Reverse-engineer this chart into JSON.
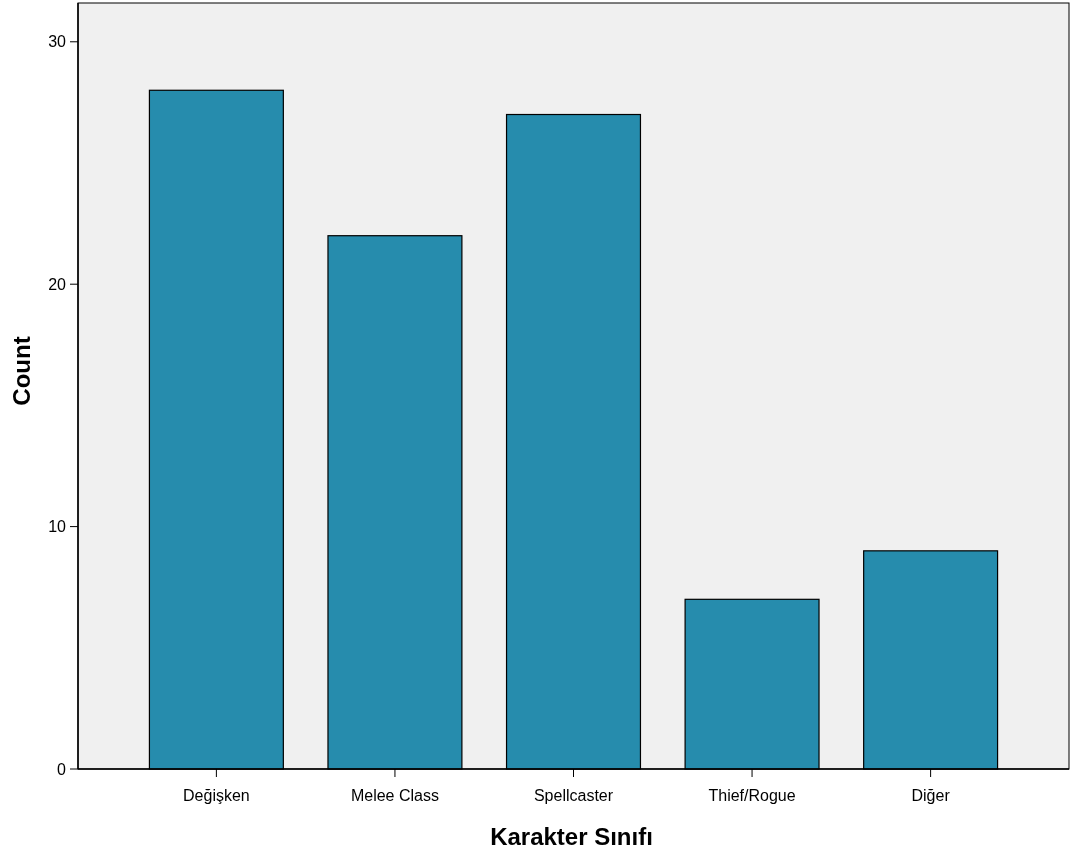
{
  "chart_data": {
    "type": "bar",
    "xlabel": "Karakter Sınıfı",
    "ylabel": "Count",
    "categories": [
      "Değişken",
      "Melee Class",
      "Spellcaster",
      "Thief/Rogue",
      "Diğer"
    ],
    "values": [
      28,
      22,
      27,
      7,
      9
    ],
    "color": "#268cad",
    "ylim": [
      0,
      31.6
    ],
    "yticks": [
      0,
      10,
      20,
      30
    ],
    "grid": false
  }
}
